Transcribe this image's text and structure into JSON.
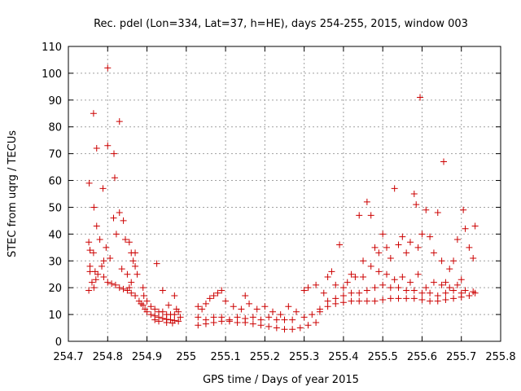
{
  "chart_data": {
    "type": "scatter",
    "title": "Rec. pdel (Lon=334, Lat=37, h=HE), days 254-255, 2015, window 003",
    "xlabel": "GPS time / Days of year 2015",
    "ylabel": "STEC from uqrg / TECUs",
    "xlim": [
      254.7,
      255.8
    ],
    "ylim": [
      0,
      110
    ],
    "grid": true,
    "marker": "plus",
    "color": "#cc0000",
    "x_ticks": [
      "254.7",
      "254.8",
      "254.9",
      "255",
      "255.1",
      "255.2",
      "255.3",
      "255.4",
      "255.5",
      "255.6",
      "255.7",
      "255.8"
    ],
    "y_ticks": [
      "0",
      "10",
      "20",
      "30",
      "40",
      "50",
      "60",
      "70",
      "80",
      "90",
      "100",
      "110"
    ],
    "series": [
      {
        "points": [
          [
            254.753,
            59
          ],
          [
            254.764,
            85
          ],
          [
            254.772,
            72
          ],
          [
            254.788,
            57
          ],
          [
            254.8,
            102
          ],
          [
            254.8,
            73
          ],
          [
            254.816,
            70
          ],
          [
            254.818,
            61
          ],
          [
            254.83,
            82
          ],
          [
            254.752,
            37
          ],
          [
            254.755,
            34
          ],
          [
            254.755,
            28
          ],
          [
            254.752,
            19
          ],
          [
            254.765,
            50
          ],
          [
            254.764,
            33
          ],
          [
            254.768,
            26
          ],
          [
            254.772,
            43
          ],
          [
            254.78,
            38
          ],
          [
            254.79,
            30
          ],
          [
            254.796,
            35
          ],
          [
            254.806,
            31
          ],
          [
            254.815,
            46
          ],
          [
            254.822,
            40
          ],
          [
            254.83,
            48
          ],
          [
            254.84,
            45
          ],
          [
            254.845,
            38
          ],
          [
            254.855,
            37
          ],
          [
            254.86,
            33
          ],
          [
            254.865,
            30
          ],
          [
            254.87,
            28
          ],
          [
            254.875,
            25
          ],
          [
            254.836,
            27
          ],
          [
            254.85,
            25
          ],
          [
            254.855,
            20
          ],
          [
            254.87,
            33
          ],
          [
            254.86,
            22
          ],
          [
            254.755,
            26
          ],
          [
            254.76,
            22
          ],
          [
            254.765,
            20
          ],
          [
            254.77,
            23
          ],
          [
            254.775,
            25
          ],
          [
            254.785,
            28
          ],
          [
            254.79,
            24
          ],
          [
            254.8,
            22
          ],
          [
            254.81,
            21.5
          ],
          [
            254.82,
            21
          ],
          [
            254.83,
            20
          ],
          [
            254.84,
            19.5
          ],
          [
            254.85,
            19
          ],
          [
            254.86,
            18
          ],
          [
            254.87,
            17
          ],
          [
            254.88,
            15
          ],
          [
            254.885,
            14
          ],
          [
            254.89,
            13.5
          ],
          [
            254.895,
            12
          ],
          [
            254.9,
            11
          ],
          [
            254.91,
            10
          ],
          [
            254.92,
            9.5
          ],
          [
            254.93,
            9
          ],
          [
            254.94,
            8.5
          ],
          [
            254.95,
            8.2
          ],
          [
            254.96,
            8
          ],
          [
            254.97,
            7.8
          ],
          [
            254.98,
            7.5
          ],
          [
            254.92,
            8
          ],
          [
            254.93,
            7.5
          ],
          [
            254.95,
            7
          ],
          [
            254.965,
            6.8
          ],
          [
            254.89,
            20
          ],
          [
            254.892,
            17
          ],
          [
            254.9,
            15
          ],
          [
            254.91,
            13
          ],
          [
            254.92,
            12
          ],
          [
            254.93,
            11
          ],
          [
            254.94,
            11
          ],
          [
            254.95,
            10
          ],
          [
            254.96,
            10
          ],
          [
            254.97,
            10
          ],
          [
            254.98,
            11
          ],
          [
            254.925,
            29
          ],
          [
            254.94,
            19
          ],
          [
            254.97,
            17
          ],
          [
            254.975,
            12
          ],
          [
            254.955,
            13.5
          ],
          [
            254.985,
            9
          ],
          [
            255.03,
            13
          ],
          [
            255.04,
            12
          ],
          [
            255.05,
            14
          ],
          [
            255.06,
            16
          ],
          [
            255.07,
            17
          ],
          [
            255.08,
            18
          ],
          [
            255.09,
            19
          ],
          [
            255.1,
            15
          ],
          [
            255.12,
            13
          ],
          [
            255.14,
            12
          ],
          [
            255.15,
            17
          ],
          [
            255.16,
            14
          ],
          [
            255.18,
            12
          ],
          [
            255.2,
            13
          ],
          [
            255.22,
            11
          ],
          [
            255.24,
            10
          ],
          [
            255.26,
            13
          ],
          [
            255.28,
            11
          ],
          [
            255.27,
            8
          ],
          [
            255.03,
            9
          ],
          [
            255.05,
            8
          ],
          [
            255.07,
            9
          ],
          [
            255.09,
            9
          ],
          [
            255.11,
            8
          ],
          [
            255.13,
            9
          ],
          [
            255.15,
            8.5
          ],
          [
            255.17,
            9
          ],
          [
            255.19,
            8
          ],
          [
            255.21,
            9
          ],
          [
            255.23,
            8
          ],
          [
            255.25,
            8
          ],
          [
            255.03,
            6
          ],
          [
            255.05,
            6.5
          ],
          [
            255.07,
            7
          ],
          [
            255.09,
            7.5
          ],
          [
            255.11,
            7.5
          ],
          [
            255.13,
            7
          ],
          [
            255.15,
            7
          ],
          [
            255.17,
            6.5
          ],
          [
            255.19,
            6
          ],
          [
            255.21,
            5.5
          ],
          [
            255.23,
            5
          ],
          [
            255.25,
            4.5
          ],
          [
            255.27,
            4.5
          ],
          [
            255.29,
            5
          ],
          [
            255.31,
            6
          ],
          [
            255.33,
            7
          ],
          [
            255.3,
            9
          ],
          [
            255.32,
            10
          ],
          [
            255.34,
            11
          ],
          [
            255.3,
            19
          ],
          [
            255.31,
            20
          ],
          [
            255.33,
            21
          ],
          [
            255.35,
            18
          ],
          [
            255.36,
            24
          ],
          [
            255.37,
            26
          ],
          [
            255.38,
            21
          ],
          [
            255.39,
            36
          ],
          [
            255.4,
            20
          ],
          [
            255.41,
            22
          ],
          [
            255.42,
            25
          ],
          [
            255.43,
            24
          ],
          [
            255.44,
            47
          ],
          [
            255.45,
            30
          ],
          [
            255.46,
            52
          ],
          [
            255.47,
            47
          ],
          [
            255.48,
            35
          ],
          [
            255.49,
            33
          ],
          [
            255.5,
            40
          ],
          [
            255.51,
            35
          ],
          [
            255.52,
            31
          ],
          [
            255.53,
            57
          ],
          [
            255.54,
            36
          ],
          [
            255.55,
            39
          ],
          [
            255.56,
            33
          ],
          [
            255.57,
            37
          ],
          [
            255.58,
            55
          ],
          [
            255.585,
            51
          ],
          [
            255.59,
            35
          ],
          [
            255.595,
            91
          ],
          [
            255.6,
            40
          ],
          [
            255.61,
            49
          ],
          [
            255.62,
            39
          ],
          [
            255.63,
            33
          ],
          [
            255.64,
            48
          ],
          [
            255.65,
            30
          ],
          [
            255.655,
            67
          ],
          [
            255.66,
            22
          ],
          [
            255.67,
            27
          ],
          [
            255.68,
            30
          ],
          [
            255.69,
            38
          ],
          [
            255.7,
            23
          ],
          [
            255.705,
            49
          ],
          [
            255.71,
            42
          ],
          [
            255.72,
            35
          ],
          [
            255.73,
            31
          ],
          [
            255.735,
            43
          ],
          [
            255.45,
            24
          ],
          [
            255.47,
            28
          ],
          [
            255.49,
            26
          ],
          [
            255.51,
            25
          ],
          [
            255.53,
            23
          ],
          [
            255.55,
            24
          ],
          [
            255.57,
            22
          ],
          [
            255.59,
            25
          ],
          [
            255.61,
            20
          ],
          [
            255.63,
            22
          ],
          [
            255.65,
            21
          ],
          [
            255.67,
            20
          ],
          [
            255.69,
            21
          ],
          [
            255.71,
            19
          ],
          [
            255.73,
            18.5
          ],
          [
            255.36,
            15
          ],
          [
            255.38,
            16
          ],
          [
            255.4,
            17
          ],
          [
            255.42,
            18
          ],
          [
            255.44,
            18
          ],
          [
            255.46,
            19
          ],
          [
            255.48,
            20
          ],
          [
            255.5,
            21
          ],
          [
            255.52,
            20
          ],
          [
            255.54,
            20
          ],
          [
            255.56,
            19
          ],
          [
            255.58,
            19
          ],
          [
            255.6,
            18
          ],
          [
            255.62,
            18
          ],
          [
            255.64,
            17
          ],
          [
            255.66,
            18
          ],
          [
            255.68,
            19
          ],
          [
            255.7,
            18
          ],
          [
            255.34,
            12
          ],
          [
            255.36,
            13
          ],
          [
            255.38,
            14
          ],
          [
            255.4,
            14.5
          ],
          [
            255.42,
            15
          ],
          [
            255.44,
            15
          ],
          [
            255.46,
            15
          ],
          [
            255.48,
            15
          ],
          [
            255.5,
            15.5
          ],
          [
            255.52,
            16
          ],
          [
            255.54,
            16
          ],
          [
            255.56,
            16
          ],
          [
            255.58,
            16
          ],
          [
            255.6,
            15.5
          ],
          [
            255.62,
            15
          ],
          [
            255.64,
            15
          ],
          [
            255.66,
            15.5
          ],
          [
            255.68,
            16
          ],
          [
            255.7,
            16.5
          ],
          [
            255.72,
            17
          ],
          [
            255.735,
            18
          ]
        ]
      }
    ]
  }
}
